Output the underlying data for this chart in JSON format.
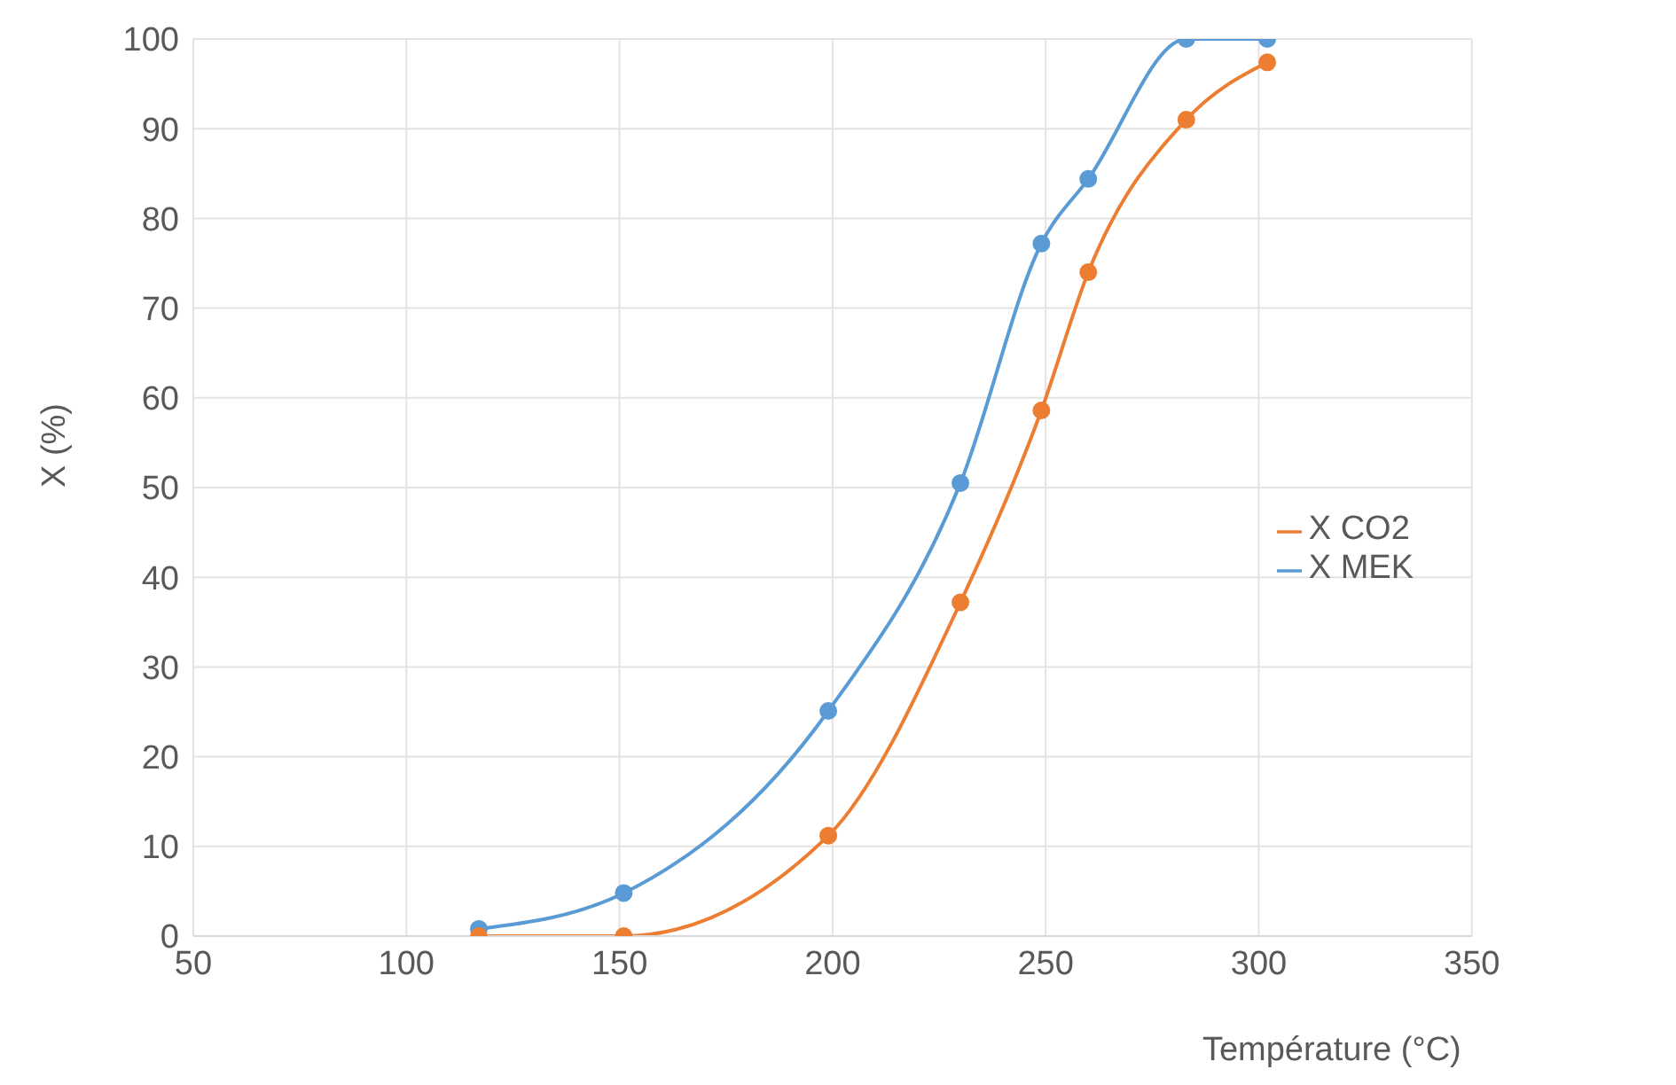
{
  "chart_data": {
    "type": "line",
    "xlabel": "Température (°C)",
    "ylabel": "X (%)",
    "xlim": [
      50,
      350
    ],
    "xticks": [
      50,
      100,
      150,
      200,
      250,
      300,
      350
    ],
    "ylim": [
      0,
      100
    ],
    "yticks": [
      0,
      10,
      20,
      30,
      40,
      50,
      60,
      70,
      80,
      90,
      100
    ],
    "grid": true,
    "legend": "right",
    "marker": "circle",
    "line_style": "solid",
    "x": [
      117,
      151,
      199,
      230,
      249,
      260,
      283,
      302
    ],
    "series": [
      {
        "name": "X MEK",
        "color": "#5b9bd5",
        "values": [
          0.8,
          4.8,
          25.1,
          50.5,
          77.2,
          84.4,
          100,
          100
        ]
      },
      {
        "name": "X CO2",
        "color": "#ed7d31",
        "values": [
          0,
          0,
          11.2,
          37.2,
          58.6,
          74,
          91,
          97.4
        ]
      }
    ]
  }
}
